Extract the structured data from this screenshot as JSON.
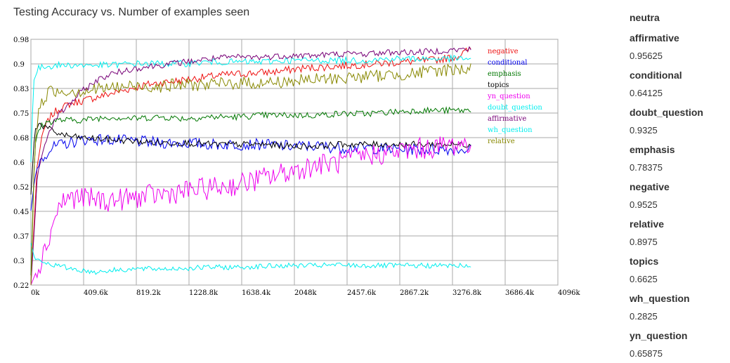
{
  "title": "Testing Accuracy vs. Number of examples seen",
  "side_panel": {
    "heading": "neutra",
    "entries": [
      {
        "name": "affirmative",
        "value": "0.95625"
      },
      {
        "name": "conditional",
        "value": "0.64125"
      },
      {
        "name": "doubt_question",
        "value": "0.9325"
      },
      {
        "name": "emphasis",
        "value": "0.78375"
      },
      {
        "name": "negative",
        "value": "0.9525"
      },
      {
        "name": "relative",
        "value": "0.8975"
      },
      {
        "name": "topics",
        "value": "0.6625"
      },
      {
        "name": "wh_question",
        "value": "0.2825"
      },
      {
        "name": "yn_question",
        "value": "0.65875"
      }
    ]
  },
  "chart_data": {
    "type": "line",
    "title": "Testing Accuracy vs. Number of examples seen",
    "xlabel": "",
    "ylabel": "",
    "xlim": [
      0,
      4096000
    ],
    "ylim": [
      0.22,
      0.98
    ],
    "grid": true,
    "legend_position": "right",
    "x_ticks": [
      "0k",
      "409.6k",
      "819.2k",
      "1228.8k",
      "1638.4k",
      "2048k",
      "2457.6k",
      "2867.2k",
      "3276.8k",
      "3686.4k",
      "4096k"
    ],
    "y_ticks": [
      "0.98",
      "0.9",
      "0.83",
      "0.75",
      "0.68",
      "0.6",
      "0.52",
      "0.45",
      "0.37",
      "0.3",
      "0.22"
    ],
    "series": [
      {
        "name": "negative",
        "color": "#ee1111",
        "x": [
          0,
          50000,
          100000,
          150000,
          200000,
          300000,
          400000,
          500000,
          700000,
          900000,
          1100000,
          1300000,
          1500000,
          1700000,
          1900000,
          2100000,
          2300000,
          2500000,
          2700000,
          2900000,
          3100000,
          3300000,
          3420000
        ],
        "y": [
          0.22,
          0.6,
          0.7,
          0.74,
          0.76,
          0.78,
          0.79,
          0.8,
          0.82,
          0.84,
          0.85,
          0.86,
          0.87,
          0.875,
          0.88,
          0.89,
          0.895,
          0.9,
          0.905,
          0.91,
          0.915,
          0.925,
          0.95
        ]
      },
      {
        "name": "conditional",
        "color": "#0000ee",
        "x": [
          0,
          30000,
          60000,
          100000,
          150000,
          200000,
          300000,
          400000,
          600000,
          800000,
          1000000,
          1200000,
          1400000,
          1600000,
          1800000,
          2000000,
          2200000,
          2400000,
          2600000,
          2800000,
          3000000,
          3200000,
          3420000
        ],
        "y": [
          0.45,
          0.55,
          0.6,
          0.62,
          0.64,
          0.65,
          0.66,
          0.67,
          0.67,
          0.665,
          0.66,
          0.66,
          0.655,
          0.655,
          0.655,
          0.65,
          0.65,
          0.645,
          0.645,
          0.64,
          0.64,
          0.64,
          0.64
        ]
      },
      {
        "name": "emphasis",
        "color": "#007700",
        "x": [
          0,
          30000,
          60000,
          100000,
          200000,
          400000,
          600000,
          800000,
          1000000,
          1200000,
          1400000,
          1600000,
          1800000,
          2000000,
          2200000,
          2400000,
          2600000,
          2800000,
          3000000,
          3200000,
          3420000
        ],
        "y": [
          0.25,
          0.65,
          0.7,
          0.72,
          0.73,
          0.73,
          0.74,
          0.735,
          0.74,
          0.735,
          0.74,
          0.74,
          0.745,
          0.745,
          0.745,
          0.75,
          0.75,
          0.755,
          0.76,
          0.76,
          0.76
        ]
      },
      {
        "name": "topics",
        "color": "#000000",
        "x": [
          0,
          30000,
          60000,
          100000,
          150000,
          200000,
          300000,
          400000,
          600000,
          800000,
          1000000,
          1200000,
          1400000,
          1600000,
          1800000,
          2000000,
          2200000,
          2400000,
          2600000,
          2800000,
          3000000,
          3200000,
          3420000
        ],
        "y": [
          0.5,
          0.7,
          0.72,
          0.71,
          0.7,
          0.69,
          0.68,
          0.675,
          0.67,
          0.665,
          0.66,
          0.66,
          0.655,
          0.655,
          0.655,
          0.65,
          0.65,
          0.655,
          0.655,
          0.655,
          0.655,
          0.655,
          0.655
        ]
      },
      {
        "name": "yn_question",
        "color": "#ee00ee",
        "x": [
          0,
          50000,
          100000,
          150000,
          200000,
          250000,
          300000,
          400000,
          600000,
          800000,
          1000000,
          1200000,
          1400000,
          1600000,
          1800000,
          2000000,
          2200000,
          2400000,
          2600000,
          2800000,
          3000000,
          3200000,
          3420000
        ],
        "y": [
          0.22,
          0.27,
          0.32,
          0.38,
          0.45,
          0.48,
          0.49,
          0.49,
          0.48,
          0.49,
          0.5,
          0.51,
          0.52,
          0.53,
          0.55,
          0.57,
          0.59,
          0.6,
          0.62,
          0.63,
          0.64,
          0.65,
          0.66
        ]
      },
      {
        "name": "doubt_question",
        "color": "#00eeee",
        "x": [
          0,
          20000,
          60000,
          100000,
          200000,
          400000,
          600000,
          800000,
          1000000,
          1200000,
          1400000,
          1600000,
          1800000,
          2000000,
          2200000,
          2400000,
          2600000,
          2800000,
          3000000,
          3200000,
          3420000
        ],
        "y": [
          0.6,
          0.85,
          0.89,
          0.895,
          0.9,
          0.9,
          0.9,
          0.905,
          0.905,
          0.905,
          0.91,
          0.91,
          0.91,
          0.915,
          0.915,
          0.915,
          0.915,
          0.92,
          0.92,
          0.92,
          0.92
        ]
      },
      {
        "name": "affirmative",
        "color": "#770077",
        "x": [
          0,
          50000,
          100000,
          150000,
          200000,
          300000,
          400000,
          500000,
          600000,
          800000,
          1000000,
          1200000,
          1400000,
          1600000,
          1800000,
          2000000,
          2200000,
          2400000,
          2600000,
          2800000,
          3000000,
          3200000,
          3420000
        ],
        "y": [
          0.22,
          0.55,
          0.65,
          0.7,
          0.74,
          0.78,
          0.82,
          0.85,
          0.87,
          0.89,
          0.9,
          0.91,
          0.92,
          0.925,
          0.925,
          0.93,
          0.93,
          0.935,
          0.935,
          0.94,
          0.94,
          0.945,
          0.95
        ]
      },
      {
        "name": "wh_question",
        "color": "#00eeee",
        "x": [
          0,
          30000,
          60000,
          100000,
          200000,
          400000,
          500000,
          600000,
          800000,
          1000000,
          1200000,
          1400000,
          1600000,
          1800000,
          2000000,
          2200000,
          2400000,
          2600000,
          2800000,
          3000000,
          3200000,
          3420000
        ],
        "y": [
          0.35,
          0.3,
          0.295,
          0.29,
          0.28,
          0.265,
          0.26,
          0.265,
          0.27,
          0.27,
          0.272,
          0.275,
          0.275,
          0.278,
          0.28,
          0.28,
          0.282,
          0.28,
          0.28,
          0.28,
          0.28,
          0.28
        ]
      },
      {
        "name": "relative",
        "color": "#888800",
        "x": [
          0,
          30000,
          60000,
          100000,
          150000,
          200000,
          300000,
          400000,
          600000,
          800000,
          1000000,
          1200000,
          1400000,
          1600000,
          1800000,
          2000000,
          2200000,
          2400000,
          2600000,
          2800000,
          3000000,
          3200000,
          3420000
        ],
        "y": [
          0.22,
          0.65,
          0.75,
          0.8,
          0.82,
          0.82,
          0.82,
          0.82,
          0.83,
          0.835,
          0.835,
          0.84,
          0.84,
          0.845,
          0.845,
          0.85,
          0.855,
          0.86,
          0.865,
          0.87,
          0.875,
          0.885,
          0.89
        ]
      }
    ]
  }
}
